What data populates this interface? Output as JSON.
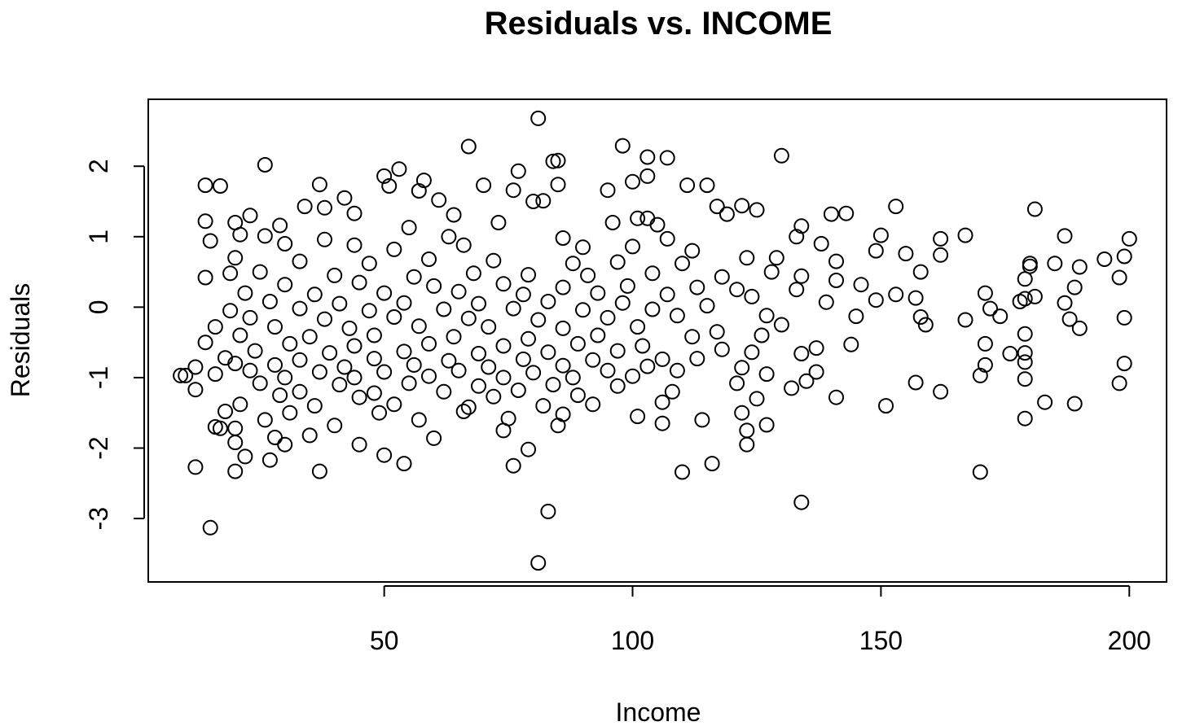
{
  "chart_data": {
    "type": "scatter",
    "title": "Residuals vs. INCOME",
    "xlabel": "Income",
    "ylabel": "Residuals",
    "xlim": [
      2.5,
      207.5
    ],
    "ylim": [
      -3.9,
      2.95
    ],
    "x_ticks": [
      50,
      100,
      150,
      200
    ],
    "y_ticks": [
      -3,
      -2,
      -1,
      0,
      1,
      2
    ],
    "grid": false,
    "legend": "none",
    "marker": "open-circle",
    "series": [
      {
        "points": [
          [
            81,
            2.68
          ],
          [
            67,
            2.28
          ],
          [
            98,
            2.29
          ],
          [
            130,
            2.15
          ],
          [
            103,
            2.13
          ],
          [
            107,
            2.12
          ],
          [
            84,
            2.07
          ],
          [
            85,
            2.08
          ],
          [
            26,
            2.02
          ],
          [
            53,
            1.96
          ],
          [
            77,
            1.93
          ],
          [
            50,
            1.86
          ],
          [
            103,
            1.86
          ],
          [
            58,
            1.8
          ],
          [
            100,
            1.78
          ],
          [
            37,
            1.74
          ],
          [
            14,
            1.73
          ],
          [
            17,
            1.72
          ],
          [
            51,
            1.72
          ],
          [
            70,
            1.73
          ],
          [
            85,
            1.74
          ],
          [
            111,
            1.73
          ],
          [
            115,
            1.73
          ],
          [
            57,
            1.65
          ],
          [
            76,
            1.66
          ],
          [
            95,
            1.66
          ],
          [
            42,
            1.55
          ],
          [
            61,
            1.52
          ],
          [
            80,
            1.5
          ],
          [
            82,
            1.51
          ],
          [
            122,
            1.44
          ],
          [
            125,
            1.38
          ],
          [
            153,
            1.43
          ],
          [
            181,
            1.39
          ],
          [
            117,
            1.43
          ],
          [
            34,
            1.43
          ],
          [
            38,
            1.41
          ],
          [
            44,
            1.33
          ],
          [
            64,
            1.31
          ],
          [
            103,
            1.26
          ],
          [
            119,
            1.32
          ],
          [
            140,
            1.32
          ],
          [
            143,
            1.33
          ],
          [
            23,
            1.3
          ],
          [
            20,
            1.2
          ],
          [
            14,
            1.22
          ],
          [
            29,
            1.16
          ],
          [
            55,
            1.13
          ],
          [
            73,
            1.2
          ],
          [
            96,
            1.2
          ],
          [
            101,
            1.26
          ],
          [
            105,
            1.17
          ],
          [
            134,
            1.15
          ],
          [
            21,
            1.03
          ],
          [
            26,
            1.01
          ],
          [
            38,
            0.96
          ],
          [
            63,
            1.0
          ],
          [
            86,
            0.98
          ],
          [
            107,
            0.97
          ],
          [
            133,
            1.0
          ],
          [
            150,
            1.02
          ],
          [
            162,
            0.97
          ],
          [
            167,
            1.02
          ],
          [
            187,
            1.01
          ],
          [
            200,
            0.97
          ],
          [
            15,
            0.94
          ],
          [
            30,
            0.9
          ],
          [
            44,
            0.88
          ],
          [
            52,
            0.82
          ],
          [
            66,
            0.88
          ],
          [
            90,
            0.85
          ],
          [
            100,
            0.86
          ],
          [
            112,
            0.8
          ],
          [
            123,
            0.7
          ],
          [
            138,
            0.9
          ],
          [
            149,
            0.8
          ],
          [
            155,
            0.76
          ],
          [
            162,
            0.74
          ],
          [
            180,
            0.62
          ],
          [
            190,
            0.57
          ],
          [
            195,
            0.68
          ],
          [
            199,
            0.72
          ],
          [
            185,
            0.62
          ],
          [
            20,
            0.7
          ],
          [
            33,
            0.65
          ],
          [
            47,
            0.62
          ],
          [
            59,
            0.68
          ],
          [
            72,
            0.66
          ],
          [
            88,
            0.62
          ],
          [
            97,
            0.64
          ],
          [
            110,
            0.62
          ],
          [
            129,
            0.7
          ],
          [
            141,
            0.65
          ],
          [
            180,
            0.58
          ],
          [
            19,
            0.48
          ],
          [
            25,
            0.5
          ],
          [
            40,
            0.45
          ],
          [
            56,
            0.43
          ],
          [
            68,
            0.48
          ],
          [
            79,
            0.46
          ],
          [
            91,
            0.45
          ],
          [
            104,
            0.48
          ],
          [
            118,
            0.43
          ],
          [
            128,
            0.5
          ],
          [
            134,
            0.44
          ],
          [
            146,
            0.32
          ],
          [
            158,
            0.5
          ],
          [
            179,
            0.4
          ],
          [
            198,
            0.42
          ],
          [
            14,
            0.42
          ],
          [
            30,
            0.32
          ],
          [
            45,
            0.35
          ],
          [
            60,
            0.3
          ],
          [
            74,
            0.33
          ],
          [
            86,
            0.28
          ],
          [
            99,
            0.3
          ],
          [
            113,
            0.28
          ],
          [
            121,
            0.25
          ],
          [
            133,
            0.25
          ],
          [
            141,
            0.38
          ],
          [
            189,
            0.28
          ],
          [
            22,
            0.2
          ],
          [
            36,
            0.18
          ],
          [
            50,
            0.2
          ],
          [
            65,
            0.22
          ],
          [
            78,
            0.18
          ],
          [
            93,
            0.2
          ],
          [
            107,
            0.18
          ],
          [
            124,
            0.15
          ],
          [
            149,
            0.1
          ],
          [
            153,
            0.18
          ],
          [
            171,
            0.2
          ],
          [
            179,
            0.12
          ],
          [
            181,
            0.15
          ],
          [
            27,
            0.08
          ],
          [
            41,
            0.05
          ],
          [
            54,
            0.06
          ],
          [
            69,
            0.05
          ],
          [
            83,
            0.08
          ],
          [
            98,
            0.06
          ],
          [
            115,
            0.02
          ],
          [
            139,
            0.07
          ],
          [
            157,
            0.13
          ],
          [
            178,
            0.08
          ],
          [
            187,
            0.06
          ],
          [
            19,
            -0.05
          ],
          [
            33,
            -0.02
          ],
          [
            47,
            -0.05
          ],
          [
            62,
            -0.03
          ],
          [
            76,
            -0.02
          ],
          [
            90,
            -0.04
          ],
          [
            104,
            -0.03
          ],
          [
            127,
            -0.12
          ],
          [
            145,
            -0.13
          ],
          [
            158,
            -0.14
          ],
          [
            172,
            -0.02
          ],
          [
            23,
            -0.15
          ],
          [
            38,
            -0.17
          ],
          [
            52,
            -0.14
          ],
          [
            67,
            -0.16
          ],
          [
            81,
            -0.18
          ],
          [
            95,
            -0.15
          ],
          [
            109,
            -0.12
          ],
          [
            130,
            -0.25
          ],
          [
            167,
            -0.18
          ],
          [
            188,
            -0.17
          ],
          [
            199,
            -0.15
          ],
          [
            16,
            -0.28
          ],
          [
            28,
            -0.28
          ],
          [
            43,
            -0.3
          ],
          [
            57,
            -0.27
          ],
          [
            71,
            -0.28
          ],
          [
            86,
            -0.3
          ],
          [
            101,
            -0.28
          ],
          [
            117,
            -0.35
          ],
          [
            159,
            -0.25
          ],
          [
            174,
            -0.13
          ],
          [
            190,
            -0.3
          ],
          [
            21,
            -0.4
          ],
          [
            35,
            -0.42
          ],
          [
            48,
            -0.4
          ],
          [
            64,
            -0.42
          ],
          [
            79,
            -0.45
          ],
          [
            93,
            -0.4
          ],
          [
            112,
            -0.42
          ],
          [
            126,
            -0.4
          ],
          [
            179,
            -0.38
          ],
          [
            14,
            -0.5
          ],
          [
            31,
            -0.52
          ],
          [
            44,
            -0.55
          ],
          [
            59,
            -0.52
          ],
          [
            74,
            -0.55
          ],
          [
            89,
            -0.52
          ],
          [
            102,
            -0.55
          ],
          [
            118,
            -0.6
          ],
          [
            137,
            -0.58
          ],
          [
            144,
            -0.53
          ],
          [
            171,
            -0.52
          ],
          [
            24,
            -0.62
          ],
          [
            39,
            -0.65
          ],
          [
            54,
            -0.63
          ],
          [
            69,
            -0.66
          ],
          [
            83,
            -0.64
          ],
          [
            97,
            -0.62
          ],
          [
            124,
            -0.64
          ],
          [
            134,
            -0.66
          ],
          [
            176,
            -0.66
          ],
          [
            179,
            -0.65
          ],
          [
            18,
            -0.72
          ],
          [
            33,
            -0.75
          ],
          [
            48,
            -0.73
          ],
          [
            63,
            -0.76
          ],
          [
            78,
            -0.74
          ],
          [
            92,
            -0.75
          ],
          [
            106,
            -0.74
          ],
          [
            113,
            -0.73
          ],
          [
            179,
            -0.78
          ],
          [
            20,
            -0.8
          ],
          [
            28,
            -0.82
          ],
          [
            42,
            -0.85
          ],
          [
            56,
            -0.82
          ],
          [
            71,
            -0.85
          ],
          [
            86,
            -0.83
          ],
          [
            103,
            -0.84
          ],
          [
            122,
            -0.86
          ],
          [
            171,
            -0.82
          ],
          [
            199,
            -0.8
          ],
          [
            12,
            -0.85
          ],
          [
            23,
            -0.9
          ],
          [
            37,
            -0.92
          ],
          [
            50,
            -0.92
          ],
          [
            65,
            -0.9
          ],
          [
            80,
            -0.93
          ],
          [
            95,
            -0.9
          ],
          [
            109,
            -0.9
          ],
          [
            127,
            -0.95
          ],
          [
            137,
            -0.92
          ],
          [
            9,
            -0.97
          ],
          [
            10,
            -0.97
          ],
          [
            16,
            -0.95
          ],
          [
            30,
            -1.0
          ],
          [
            44,
            -1.0
          ],
          [
            59,
            -0.98
          ],
          [
            74,
            -1.0
          ],
          [
            88,
            -1.0
          ],
          [
            100,
            -0.98
          ],
          [
            170,
            -0.97
          ],
          [
            179,
            -1.02
          ],
          [
            25,
            -1.08
          ],
          [
            41,
            -1.1
          ],
          [
            55,
            -1.08
          ],
          [
            69,
            -1.12
          ],
          [
            84,
            -1.1
          ],
          [
            97,
            -1.12
          ],
          [
            121,
            -1.08
          ],
          [
            135,
            -1.05
          ],
          [
            157,
            -1.07
          ],
          [
            198,
            -1.08
          ],
          [
            12,
            -1.17
          ],
          [
            33,
            -1.2
          ],
          [
            48,
            -1.22
          ],
          [
            62,
            -1.2
          ],
          [
            77,
            -1.18
          ],
          [
            108,
            -1.2
          ],
          [
            132,
            -1.15
          ],
          [
            162,
            -1.2
          ],
          [
            29,
            -1.25
          ],
          [
            45,
            -1.28
          ],
          [
            72,
            -1.27
          ],
          [
            89,
            -1.25
          ],
          [
            125,
            -1.3
          ],
          [
            141,
            -1.28
          ],
          [
            21,
            -1.38
          ],
          [
            36,
            -1.4
          ],
          [
            52,
            -1.38
          ],
          [
            67,
            -1.42
          ],
          [
            82,
            -1.4
          ],
          [
            92,
            -1.38
          ],
          [
            106,
            -1.35
          ],
          [
            151,
            -1.4
          ],
          [
            183,
            -1.35
          ],
          [
            189,
            -1.37
          ],
          [
            18,
            -1.48
          ],
          [
            31,
            -1.5
          ],
          [
            49,
            -1.5
          ],
          [
            66,
            -1.48
          ],
          [
            86,
            -1.52
          ],
          [
            122,
            -1.5
          ],
          [
            16,
            -1.7
          ],
          [
            17,
            -1.72
          ],
          [
            26,
            -1.6
          ],
          [
            57,
            -1.6
          ],
          [
            75,
            -1.58
          ],
          [
            101,
            -1.55
          ],
          [
            114,
            -1.6
          ],
          [
            179,
            -1.58
          ],
          [
            20,
            -1.72
          ],
          [
            40,
            -1.68
          ],
          [
            74,
            -1.75
          ],
          [
            85,
            -1.68
          ],
          [
            106,
            -1.65
          ],
          [
            123,
            -1.75
          ],
          [
            127,
            -1.67
          ],
          [
            28,
            -1.85
          ],
          [
            35,
            -1.82
          ],
          [
            45,
            -1.95
          ],
          [
            60,
            -1.86
          ],
          [
            79,
            -2.02
          ],
          [
            30,
            -1.95
          ],
          [
            20,
            -1.92
          ],
          [
            123,
            -1.95
          ],
          [
            22,
            -2.12
          ],
          [
            50,
            -2.1
          ],
          [
            12,
            -2.27
          ],
          [
            20,
            -2.33
          ],
          [
            37,
            -2.33
          ],
          [
            54,
            -2.22
          ],
          [
            76,
            -2.25
          ],
          [
            116,
            -2.22
          ],
          [
            110,
            -2.34
          ],
          [
            170,
            -2.34
          ],
          [
            27,
            -2.17
          ],
          [
            134,
            -2.77
          ],
          [
            83,
            -2.9
          ],
          [
            15,
            -3.13
          ],
          [
            81,
            -3.63
          ]
        ]
      }
    ]
  }
}
